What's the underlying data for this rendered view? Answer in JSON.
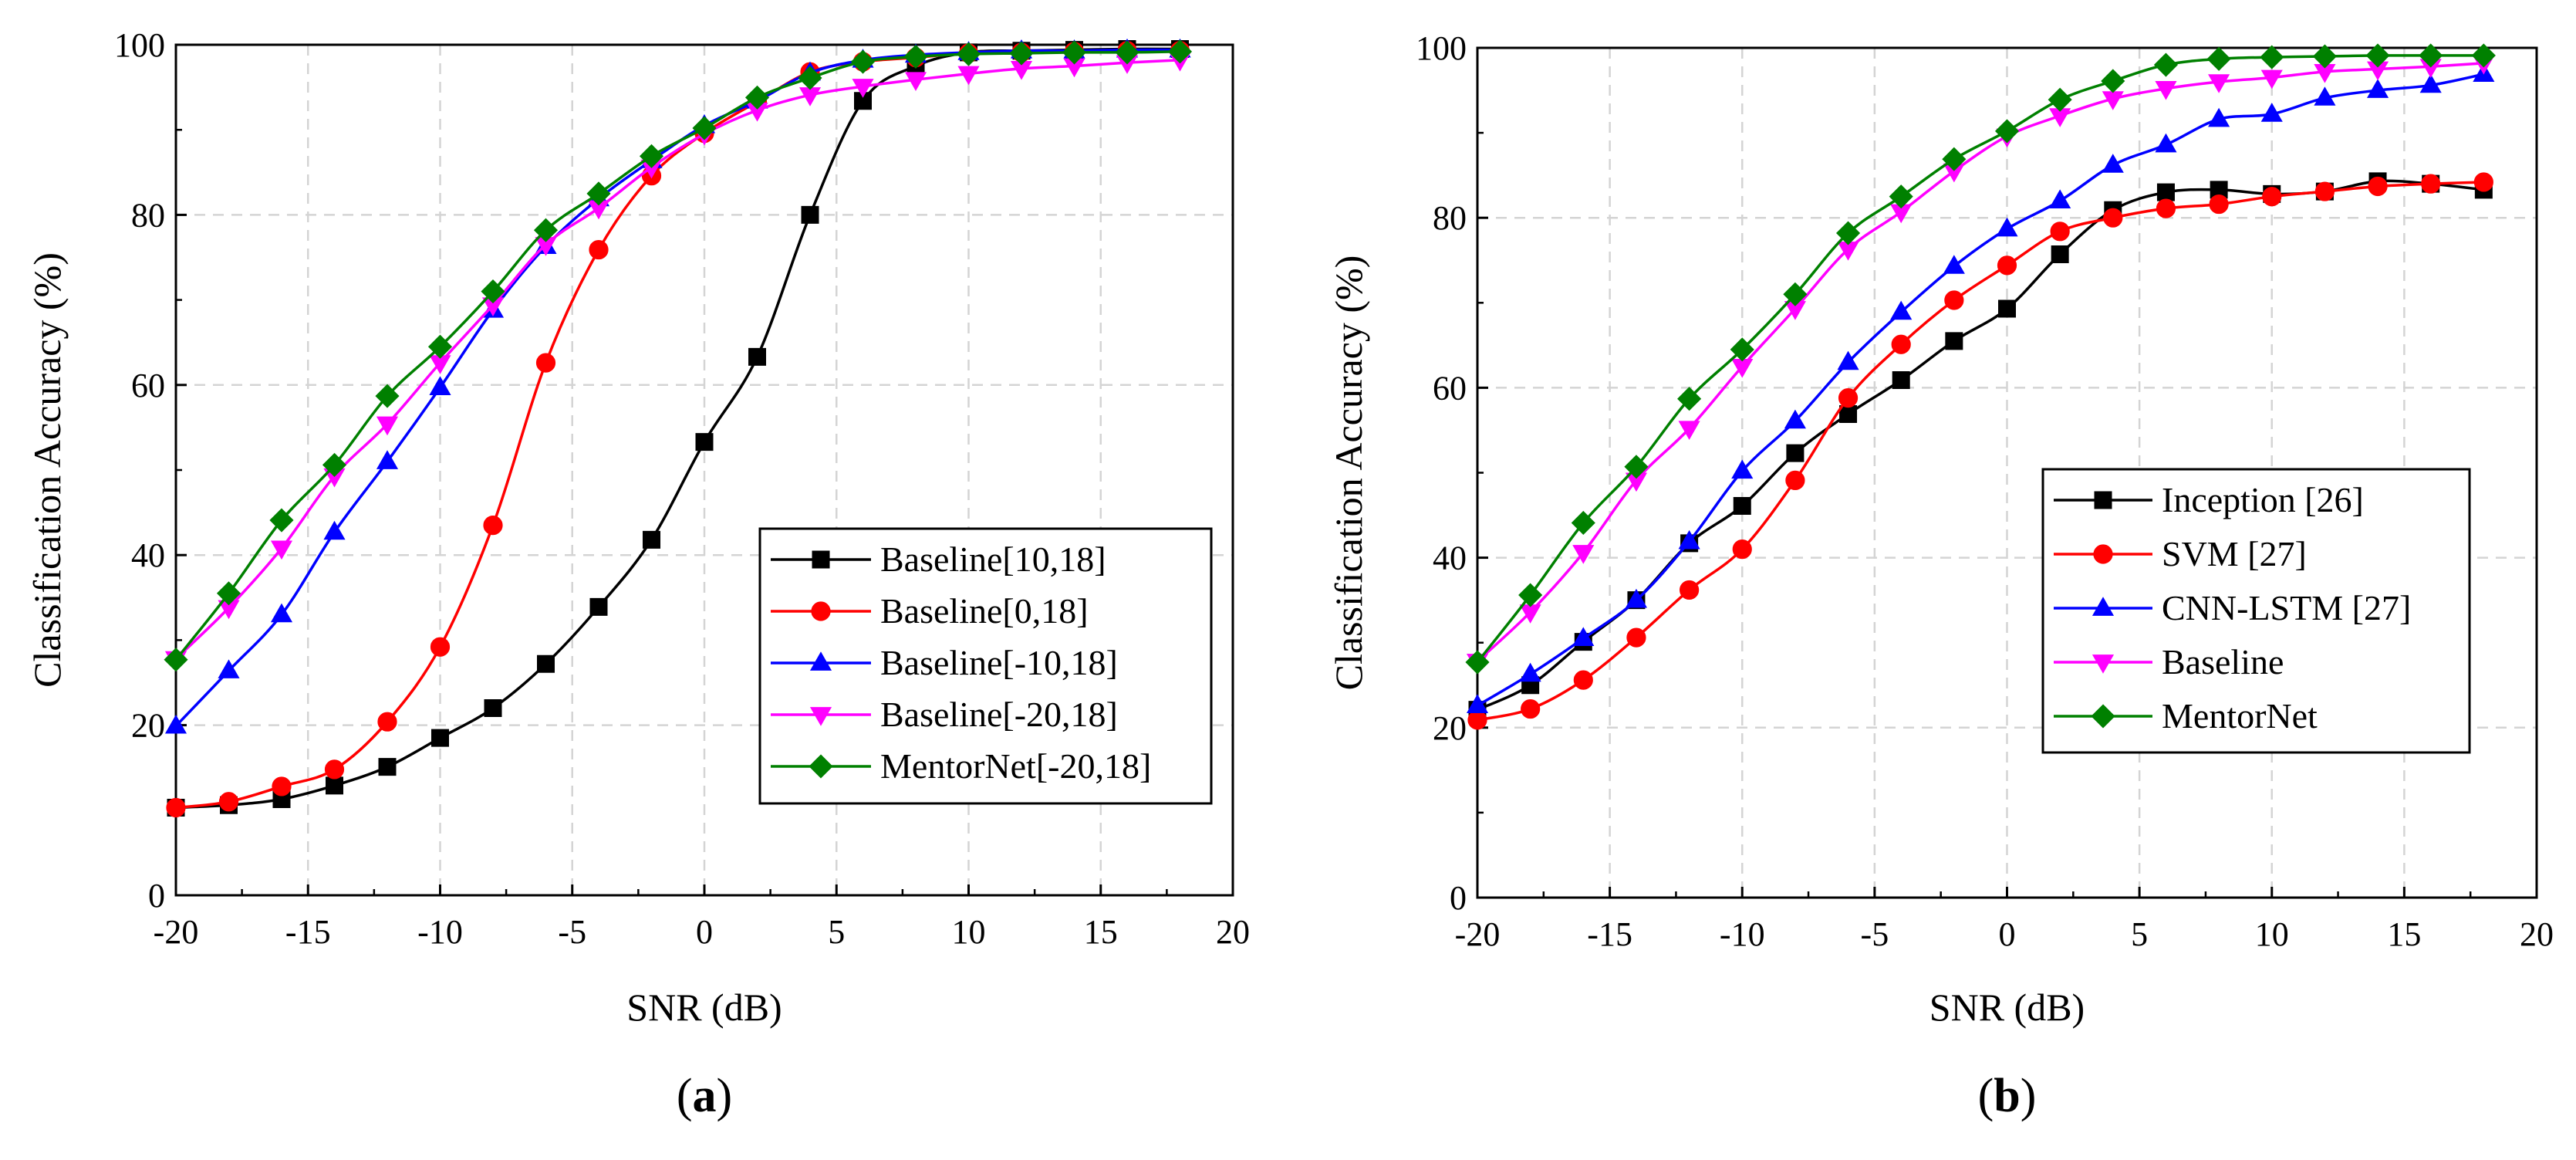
{
  "chart_data": [
    {
      "type": "line",
      "panel_label": "a",
      "title": "",
      "xlabel": "SNR (dB)",
      "ylabel": "Classification Accuracy (%)",
      "xlim": [
        -20,
        20
      ],
      "ylim": [
        0,
        100
      ],
      "xticks": [
        -20,
        -15,
        -10,
        -5,
        0,
        5,
        10,
        15,
        20
      ],
      "yticks": [
        0,
        20,
        40,
        60,
        80,
        100
      ],
      "xtick_labels": [
        "-20",
        "-15",
        "-10",
        "-5",
        "0",
        "5",
        "10",
        "15",
        "20"
      ],
      "ytick_labels": [
        "0",
        "20",
        "40",
        "60",
        "80",
        "100"
      ],
      "grid": true,
      "legend_position": "lower-right",
      "x": [
        -20,
        -18,
        -16,
        -14,
        -12,
        -10,
        -8,
        -6,
        -4,
        -2,
        0,
        2,
        4,
        6,
        8,
        10,
        12,
        14,
        16,
        18
      ],
      "series": [
        {
          "name": "Baseline[10,18]",
          "color": "#000000",
          "marker": "square",
          "values": [
            10.3,
            10.6,
            11.3,
            12.9,
            15.1,
            18.5,
            22.0,
            27.2,
            33.9,
            41.8,
            53.3,
            63.3,
            80.0,
            93.4,
            97.5,
            99.1,
            99.3,
            99.4,
            99.5,
            99.5
          ]
        },
        {
          "name": "Baseline[0,18]",
          "color": "#ff0000",
          "marker": "circle",
          "values": [
            10.3,
            11.0,
            12.8,
            14.8,
            20.4,
            29.2,
            43.5,
            62.6,
            75.9,
            84.6,
            89.6,
            93.3,
            96.8,
            98.0,
            98.5,
            99.0,
            99.1,
            99.2,
            99.3,
            99.3
          ]
        },
        {
          "name": "Baseline[-10,18]",
          "color": "#0000ff",
          "marker": "triangle-up",
          "values": [
            19.9,
            26.4,
            33.0,
            42.7,
            51.0,
            59.7,
            68.8,
            76.3,
            81.9,
            86.4,
            90.5,
            93.4,
            96.7,
            98.2,
            98.8,
            99.1,
            99.3,
            99.3,
            99.4,
            99.4
          ]
        },
        {
          "name": "Baseline[-20,18]",
          "color": "#ff00ff",
          "marker": "triangle-down",
          "values": [
            27.8,
            33.8,
            40.8,
            49.3,
            55.4,
            62.6,
            69.4,
            76.5,
            80.8,
            85.6,
            89.5,
            92.3,
            94.1,
            95.1,
            95.9,
            96.6,
            97.2,
            97.5,
            97.9,
            98.2
          ]
        },
        {
          "name": "MentorNet[-20,18]",
          "color": "#008000",
          "marker": "diamond",
          "values": [
            27.7,
            35.5,
            44.1,
            50.6,
            58.7,
            64.5,
            71.0,
            78.2,
            82.5,
            86.9,
            90.2,
            93.8,
            96.1,
            98.0,
            98.6,
            98.9,
            99.0,
            99.1,
            99.1,
            99.2
          ]
        }
      ]
    },
    {
      "type": "line",
      "panel_label": "b",
      "title": "",
      "xlabel": "SNR (dB)",
      "ylabel": "Classification Accuracy (%)",
      "xlim": [
        -20,
        20
      ],
      "ylim": [
        0,
        100
      ],
      "xticks": [
        -20,
        -15,
        -10,
        -5,
        0,
        5,
        10,
        15,
        20
      ],
      "yticks": [
        0,
        20,
        40,
        60,
        80,
        100
      ],
      "xtick_labels": [
        "-20",
        "-15",
        "-10",
        "-5",
        "0",
        "5",
        "10",
        "15",
        "20"
      ],
      "ytick_labels": [
        "0",
        "20",
        "40",
        "60",
        "80",
        "100"
      ],
      "grid": true,
      "legend_position": "center-right",
      "x": [
        -20,
        -18,
        -16,
        -14,
        -12,
        -10,
        -8,
        -6,
        -4,
        -2,
        0,
        2,
        4,
        6,
        8,
        10,
        12,
        14,
        16,
        18
      ],
      "series": [
        {
          "name": "Inception [26]",
          "color": "#000000",
          "marker": "square",
          "values": [
            22.1,
            25.0,
            30.1,
            35.0,
            41.7,
            46.1,
            52.3,
            56.9,
            60.9,
            65.5,
            69.3,
            75.7,
            80.9,
            83.0,
            83.3,
            82.8,
            83.1,
            84.3,
            84.0,
            83.3
          ]
        },
        {
          "name": "SVM [27]",
          "color": "#ff0000",
          "marker": "circle",
          "values": [
            20.9,
            22.2,
            25.6,
            30.6,
            36.2,
            41.0,
            49.1,
            58.8,
            65.1,
            70.3,
            74.4,
            78.4,
            80.0,
            81.1,
            81.6,
            82.5,
            83.1,
            83.7,
            84.0,
            84.2
          ]
        },
        {
          "name": "CNN-LSTM [27]",
          "color": "#0000ff",
          "marker": "triangle-up",
          "values": [
            22.6,
            26.3,
            30.5,
            35.0,
            41.9,
            50.2,
            56.1,
            63.0,
            68.9,
            74.3,
            78.7,
            82.0,
            86.2,
            88.6,
            91.6,
            92.2,
            94.1,
            95.0,
            95.6,
            96.9
          ]
        },
        {
          "name": "Baseline",
          "color": "#ff00ff",
          "marker": "triangle-down",
          "values": [
            27.8,
            33.6,
            40.6,
            49.1,
            55.2,
            62.5,
            69.3,
            76.3,
            80.7,
            85.5,
            89.6,
            92.0,
            94.0,
            95.2,
            96.0,
            96.5,
            97.2,
            97.5,
            97.8,
            98.2
          ]
        },
        {
          "name": "MentorNet",
          "color": "#008000",
          "marker": "diamond",
          "values": [
            27.7,
            35.6,
            44.1,
            50.7,
            58.7,
            64.5,
            71.0,
            78.2,
            82.5,
            86.9,
            90.2,
            93.9,
            96.1,
            98.0,
            98.7,
            98.9,
            99.0,
            99.1,
            99.1,
            99.1
          ]
        }
      ]
    }
  ]
}
